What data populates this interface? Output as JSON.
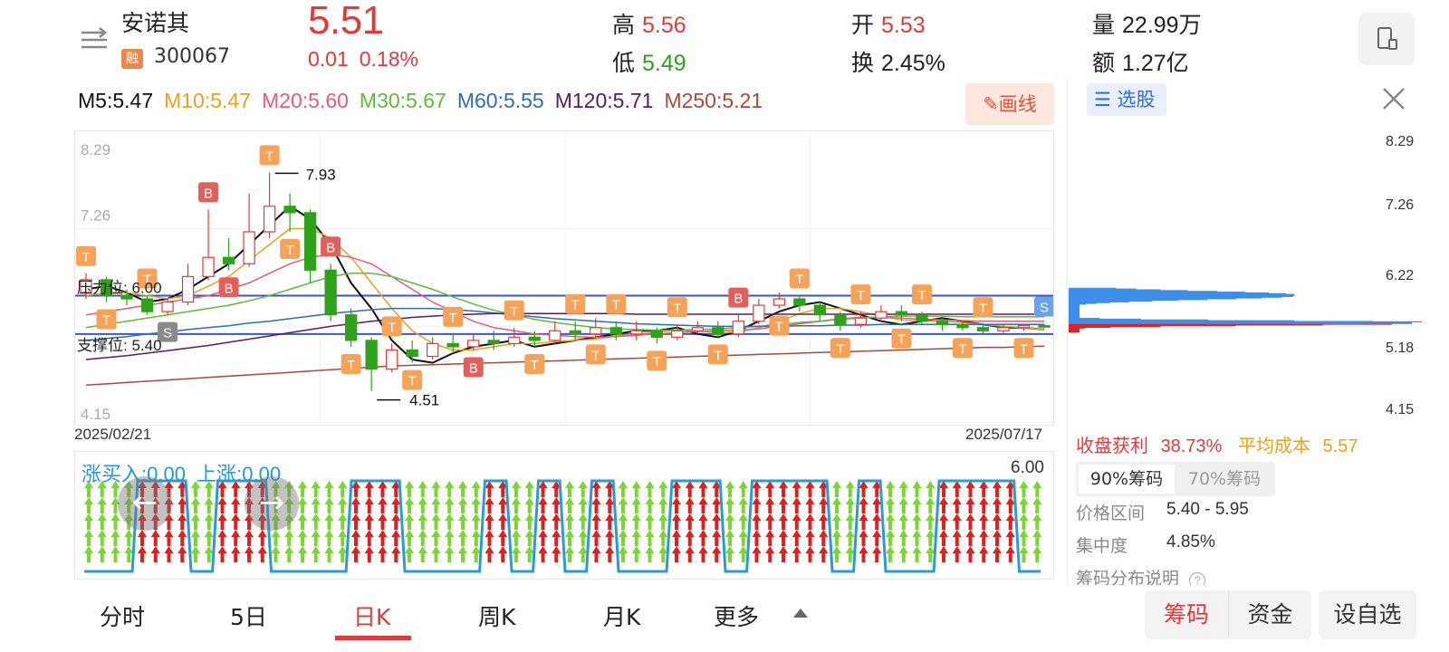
{
  "header": {
    "stock_name": "安诺其",
    "margin_badge": "融",
    "stock_code": "300067",
    "price": "5.51",
    "change": "0.01",
    "change_pct": "0.18%",
    "high_label": "高",
    "high": "5.56",
    "low_label": "低",
    "low": "5.49",
    "open_label": "开",
    "open": "5.53",
    "turnover_label": "换",
    "turnover": "2.45%",
    "volume_label": "量",
    "volume": "22.99万",
    "amount_label": "额",
    "amount": "1.27亿"
  },
  "ma_legend": [
    {
      "text": "M5:5.47",
      "color": "#111111"
    },
    {
      "text": "M10:5.47",
      "color": "#e8a21c"
    },
    {
      "text": "M20:5.60",
      "color": "#e65b7a"
    },
    {
      "text": "M30:5.67",
      "color": "#5fba3c"
    },
    {
      "text": "M60:5.55",
      "color": "#2b6fb0"
    },
    {
      "text": "M120:5.71",
      "color": "#5a1a63"
    },
    {
      "text": "M250:5.21",
      "color": "#a84a3a"
    }
  ],
  "draw_button": "画线",
  "chart_data": {
    "type": "candlestick",
    "y_ticks": [
      "8.29",
      "7.26",
      "4.15"
    ],
    "ylim": [
      4.15,
      8.29
    ],
    "start_date": "2025/02/21",
    "end_date": "2025/07/17",
    "resistance_label": "压力位: 6.00",
    "resistance": 6.0,
    "support_label": "支撑位: 5.40",
    "support": 5.4,
    "max_marker": "7.93",
    "min_marker": "4.51",
    "series": [
      {
        "name": "M5",
        "color": "#111111",
        "values": [
          6.1,
          6.15,
          6.05,
          5.9,
          5.95,
          6.1,
          6.3,
          6.5,
          6.8,
          7.1,
          7.4,
          7.2,
          6.8,
          6.2,
          5.8,
          5.3,
          5.0,
          4.95,
          5.1,
          5.2,
          5.25,
          5.3,
          5.2,
          5.25,
          5.3,
          5.35,
          5.4,
          5.45,
          5.45,
          5.5,
          5.4,
          5.35,
          5.45,
          5.6,
          5.75,
          5.85,
          5.9,
          5.8,
          5.7,
          5.6,
          5.55,
          5.6,
          5.65,
          5.6,
          5.55,
          5.5,
          5.5,
          5.47
        ]
      },
      {
        "name": "M10",
        "color": "#e8a21c",
        "values": [
          6.0,
          6.05,
          6.05,
          6.0,
          5.95,
          6.0,
          6.15,
          6.3,
          6.55,
          6.8,
          7.05,
          7.05,
          6.9,
          6.6,
          6.2,
          5.8,
          5.45,
          5.25,
          5.15,
          5.15,
          5.2,
          5.25,
          5.25,
          5.28,
          5.3,
          5.32,
          5.37,
          5.4,
          5.43,
          5.46,
          5.45,
          5.42,
          5.43,
          5.5,
          5.6,
          5.72,
          5.8,
          5.8,
          5.75,
          5.68,
          5.62,
          5.6,
          5.6,
          5.58,
          5.55,
          5.52,
          5.5,
          5.47
        ]
      },
      {
        "name": "M20",
        "color": "#e65b7a",
        "values": [
          5.7,
          5.75,
          5.8,
          5.85,
          5.9,
          5.95,
          6.0,
          6.1,
          6.2,
          6.35,
          6.5,
          6.6,
          6.65,
          6.6,
          6.5,
          6.3,
          6.1,
          5.9,
          5.75,
          5.6,
          5.5,
          5.45,
          5.4,
          5.38,
          5.36,
          5.35,
          5.36,
          5.38,
          5.4,
          5.42,
          5.44,
          5.45,
          5.46,
          5.48,
          5.52,
          5.56,
          5.6,
          5.64,
          5.66,
          5.66,
          5.65,
          5.63,
          5.62,
          5.61,
          5.6,
          5.6,
          5.6,
          5.6
        ]
      },
      {
        "name": "M30",
        "color": "#5fba3c",
        "values": [
          5.5,
          5.55,
          5.6,
          5.65,
          5.7,
          5.75,
          5.8,
          5.85,
          5.92,
          6.0,
          6.1,
          6.2,
          6.3,
          6.35,
          6.35,
          6.3,
          6.2,
          6.1,
          5.98,
          5.87,
          5.77,
          5.7,
          5.63,
          5.58,
          5.54,
          5.5,
          5.48,
          5.47,
          5.46,
          5.46,
          5.47,
          5.48,
          5.5,
          5.52,
          5.55,
          5.58,
          5.6,
          5.63,
          5.65,
          5.67,
          5.68,
          5.68,
          5.68,
          5.67,
          5.67,
          5.67,
          5.67,
          5.67
        ]
      },
      {
        "name": "M60",
        "color": "#2b6fb0",
        "values": [
          5.3,
          5.33,
          5.36,
          5.4,
          5.43,
          5.47,
          5.5,
          5.53,
          5.57,
          5.6,
          5.64,
          5.68,
          5.72,
          5.75,
          5.78,
          5.8,
          5.8,
          5.8,
          5.78,
          5.76,
          5.73,
          5.7,
          5.67,
          5.64,
          5.62,
          5.6,
          5.58,
          5.56,
          5.55,
          5.54,
          5.53,
          5.52,
          5.52,
          5.52,
          5.52,
          5.53,
          5.53,
          5.54,
          5.54,
          5.55,
          5.55,
          5.55,
          5.55,
          5.55,
          5.55,
          5.55,
          5.55,
          5.55
        ]
      },
      {
        "name": "M120",
        "color": "#5a1a63",
        "values": [
          5.0,
          5.03,
          5.06,
          5.1,
          5.14,
          5.18,
          5.22,
          5.27,
          5.32,
          5.37,
          5.42,
          5.47,
          5.52,
          5.56,
          5.6,
          5.63,
          5.66,
          5.68,
          5.7,
          5.71,
          5.72,
          5.72,
          5.72,
          5.72,
          5.72,
          5.72,
          5.72,
          5.71,
          5.71,
          5.71,
          5.71,
          5.71,
          5.71,
          5.71,
          5.71,
          5.71,
          5.71,
          5.71,
          5.71,
          5.71,
          5.71,
          5.71,
          5.71,
          5.71,
          5.71,
          5.71,
          5.71,
          5.71
        ]
      },
      {
        "name": "M250",
        "color": "#a84a3a",
        "values": [
          4.6,
          4.62,
          4.64,
          4.66,
          4.68,
          4.7,
          4.72,
          4.74,
          4.76,
          4.78,
          4.8,
          4.82,
          4.84,
          4.86,
          4.88,
          4.9,
          4.91,
          4.92,
          4.93,
          4.94,
          4.95,
          4.96,
          4.97,
          4.98,
          4.99,
          5.0,
          5.01,
          5.02,
          5.03,
          5.04,
          5.05,
          5.06,
          5.07,
          5.08,
          5.09,
          5.1,
          5.11,
          5.12,
          5.13,
          5.14,
          5.15,
          5.16,
          5.17,
          5.18,
          5.19,
          5.19,
          5.2,
          5.21
        ]
      }
    ],
    "candles": [
      [
        6.05,
        6.25,
        6.35,
        5.95
      ],
      [
        6.25,
        6.0,
        6.3,
        5.9
      ],
      [
        6.0,
        5.95,
        6.1,
        5.85
      ],
      [
        5.95,
        5.75,
        6.0,
        5.7
      ],
      [
        5.75,
        5.9,
        5.95,
        5.7
      ],
      [
        5.9,
        6.3,
        6.5,
        5.85
      ],
      [
        6.3,
        6.6,
        7.35,
        6.25
      ],
      [
        6.6,
        6.5,
        6.9,
        6.4
      ],
      [
        6.5,
        7.0,
        7.6,
        6.45
      ],
      [
        7.0,
        7.4,
        7.93,
        6.9
      ],
      [
        7.4,
        7.3,
        7.6,
        7.0
      ],
      [
        7.3,
        6.4,
        7.35,
        6.2
      ],
      [
        6.4,
        5.7,
        6.5,
        5.6
      ],
      [
        5.7,
        5.3,
        5.8,
        5.2
      ],
      [
        5.3,
        4.85,
        5.35,
        4.51
      ],
      [
        4.85,
        5.15,
        5.25,
        4.8
      ],
      [
        5.15,
        5.05,
        5.3,
        4.95
      ],
      [
        5.05,
        5.25,
        5.35,
        5.0
      ],
      [
        5.25,
        5.2,
        5.4,
        5.1
      ],
      [
        5.2,
        5.3,
        5.4,
        5.15
      ],
      [
        5.3,
        5.25,
        5.45,
        5.15
      ],
      [
        5.25,
        5.35,
        5.5,
        5.2
      ],
      [
        5.35,
        5.3,
        5.45,
        5.2
      ],
      [
        5.3,
        5.45,
        5.6,
        5.25
      ],
      [
        5.45,
        5.4,
        5.6,
        5.3
      ],
      [
        5.4,
        5.5,
        5.65,
        5.35
      ],
      [
        5.5,
        5.4,
        5.6,
        5.3
      ],
      [
        5.4,
        5.45,
        5.6,
        5.3
      ],
      [
        5.45,
        5.35,
        5.5,
        5.25
      ],
      [
        5.35,
        5.45,
        5.55,
        5.3
      ],
      [
        5.45,
        5.5,
        5.6,
        5.4
      ],
      [
        5.5,
        5.4,
        5.6,
        5.35
      ],
      [
        5.4,
        5.6,
        5.7,
        5.35
      ],
      [
        5.6,
        5.85,
        5.95,
        5.55
      ],
      [
        5.85,
        5.95,
        6.05,
        5.8
      ],
      [
        5.95,
        5.85,
        6.0,
        5.75
      ],
      [
        5.85,
        5.7,
        5.9,
        5.6
      ],
      [
        5.7,
        5.55,
        5.75,
        5.45
      ],
      [
        5.55,
        5.65,
        5.75,
        5.5
      ],
      [
        5.65,
        5.75,
        5.85,
        5.6
      ],
      [
        5.75,
        5.7,
        5.85,
        5.6
      ],
      [
        5.7,
        5.6,
        5.75,
        5.55
      ],
      [
        5.6,
        5.55,
        5.65,
        5.45
      ],
      [
        5.55,
        5.5,
        5.6,
        5.45
      ],
      [
        5.5,
        5.45,
        5.55,
        5.4
      ],
      [
        5.45,
        5.5,
        5.55,
        5.4
      ],
      [
        5.5,
        5.53,
        5.56,
        5.45
      ],
      [
        5.53,
        5.51,
        5.56,
        5.49
      ]
    ],
    "signal_letters": [
      "T",
      "T",
      "T",
      "S",
      "B",
      "B",
      "T",
      "T",
      "B",
      "T",
      "T",
      "T",
      "T",
      "B",
      "T",
      "T",
      "T",
      "T",
      "T",
      "T",
      "T",
      "T",
      "B",
      "T",
      "T",
      "T",
      "T",
      "T",
      "T",
      "T",
      "T",
      "T",
      "S"
    ]
  },
  "sub_chart": {
    "legend_a": "涨买入:0.00",
    "legend_b": "上涨:0.00",
    "right_value": "6.00",
    "left_arrow": "←",
    "right_arrow": "→"
  },
  "chip_panel": {
    "select_stock": "选股",
    "close_icon": "close-icon",
    "ticks": [
      "8.29",
      "7.26",
      "6.22",
      "5.18",
      "4.15"
    ],
    "profit_label": "收盘获利",
    "profit_value": "38.73%",
    "avg_cost_label": "平均成本",
    "avg_cost_value": "5.57",
    "tab_active": "90%筹码",
    "tab_inactive": "70%筹码",
    "range_label": "价格区间",
    "range_value": "5.40 - 5.95",
    "concentration_label": "集中度",
    "concentration_value": "4.85%",
    "explain_label": "筹码分布说明"
  },
  "tabs": [
    "分时",
    "5日",
    "日K",
    "周K",
    "月K",
    "更多"
  ],
  "active_tab": "日K",
  "bottom_buttons": {
    "chips": "筹码",
    "funds": "资金",
    "add_watch": "设自选"
  },
  "colors": {
    "up": "#e03a3a",
    "down": "#2fa11b",
    "accent_blue": "#2f6fd9",
    "signal_orange": "#f6a35a"
  }
}
